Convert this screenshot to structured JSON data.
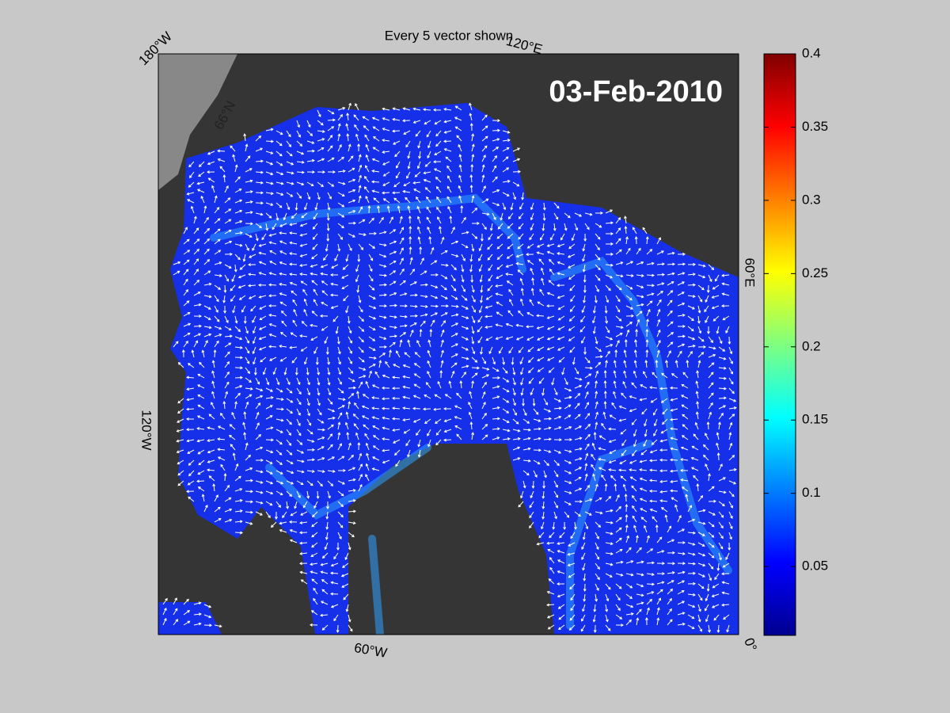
{
  "title": "Every 5 vector shown",
  "date_label": "03-Feb-2010",
  "map_labels": {
    "longitude": [
      "180°W",
      "120°E",
      "60°E",
      "0°",
      "60°W",
      "120°W"
    ],
    "latitude": [
      "66°N"
    ]
  },
  "colorbar": {
    "lim": [
      0.003,
      0.4
    ],
    "ticks": [
      0.05,
      0.1,
      0.15,
      0.2,
      0.25,
      0.3,
      0.35,
      0.4
    ]
  }
}
